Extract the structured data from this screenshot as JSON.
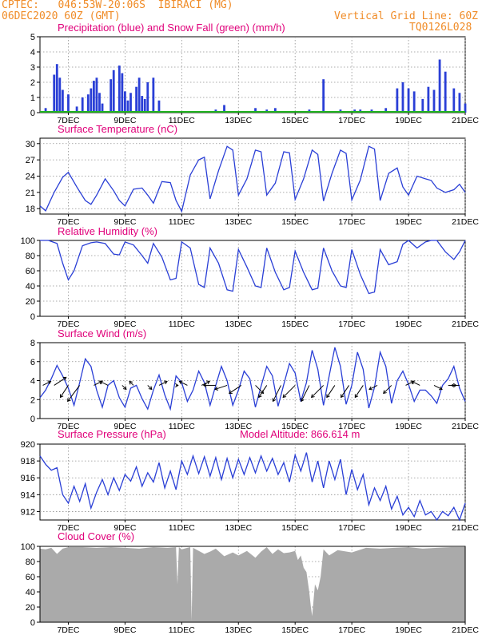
{
  "header": {
    "station_line": "CPTEC:   046:53W-20:06S  IBIRACI (MG)",
    "date_line": "06DEC2020 60Z (GMT)",
    "grid_note": "Vertical Grid Line: 60Z",
    "model_id": "TQ0126L028"
  },
  "colors": {
    "header": "#f08c28",
    "title": "#e0007a",
    "line": "#2a3fd6",
    "snow": "#21b321",
    "cloud": "#aaaaaa",
    "grid": "#909090"
  },
  "x_axis": {
    "start_day": 6,
    "end_day": 21,
    "tick_days": [
      7,
      9,
      11,
      13,
      15,
      17,
      19,
      21
    ],
    "tick_labels": [
      "7DEC",
      "9DEC",
      "11DEC",
      "13DEC",
      "15DEC",
      "17DEC",
      "19DEC",
      "21DEC"
    ]
  },
  "chart_data": [
    {
      "id": "precip",
      "type": "bar",
      "title": "Precipitation (blue) and Snow Fall (green) (mm/h)",
      "ylim": [
        0,
        5
      ],
      "yticks": [
        0,
        1,
        2,
        3,
        4,
        5
      ],
      "series": [
        {
          "name": "Precipitation",
          "color": "#2a3fd6",
          "x": [
            6.2,
            6.5,
            6.6,
            6.7,
            6.8,
            7.0,
            7.3,
            7.5,
            7.7,
            7.8,
            7.9,
            8.0,
            8.1,
            8.2,
            8.5,
            8.6,
            8.8,
            8.9,
            9.0,
            9.1,
            9.2,
            9.4,
            9.5,
            9.6,
            9.7,
            9.8,
            10.0,
            10.2,
            12.2,
            12.5,
            13.6,
            14.0,
            14.3,
            15.1,
            15.5,
            16.0,
            16.6,
            17.1,
            17.3,
            17.7,
            18.2,
            18.6,
            18.8,
            19.0,
            19.2,
            19.5,
            19.7,
            19.9,
            20.1,
            20.3,
            20.6,
            20.8,
            21.0
          ],
          "values": [
            0.3,
            2.5,
            3.2,
            2.3,
            1.5,
            1.2,
            0.4,
            1.0,
            1.2,
            1.6,
            2.1,
            2.3,
            1.3,
            0.6,
            2.2,
            2.8,
            3.1,
            2.6,
            1.4,
            0.8,
            1.3,
            1.7,
            2.3,
            1.1,
            0.9,
            2.0,
            2.3,
            0.8,
            0.2,
            0.5,
            0.3,
            0.2,
            0.3,
            0.1,
            0.2,
            2.2,
            0.2,
            0.2,
            0.2,
            0.2,
            0.3,
            1.6,
            2.0,
            1.6,
            1.4,
            0.9,
            1.7,
            1.5,
            3.5,
            2.7,
            1.6,
            1.3,
            0.6
          ]
        },
        {
          "name": "Snow Fall",
          "color": "#21b321",
          "x": [
            6,
            21
          ],
          "values": [
            0,
            0
          ]
        }
      ]
    },
    {
      "id": "temp",
      "type": "line",
      "title": "Surface Temperature (nC)",
      "ylim": [
        17,
        31
      ],
      "yticks": [
        18,
        21,
        24,
        27,
        30
      ],
      "x": [
        6.0,
        6.2,
        6.5,
        6.8,
        7.0,
        7.3,
        7.6,
        7.8,
        8.0,
        8.3,
        8.6,
        8.8,
        9.0,
        9.3,
        9.6,
        9.8,
        10.0,
        10.3,
        10.6,
        10.8,
        11.0,
        11.3,
        11.6,
        11.8,
        12.0,
        12.3,
        12.6,
        12.8,
        13.0,
        13.3,
        13.6,
        13.8,
        14.0,
        14.3,
        14.6,
        14.8,
        15.0,
        15.3,
        15.6,
        15.8,
        16.0,
        16.3,
        16.6,
        16.8,
        17.0,
        17.3,
        17.6,
        17.8,
        18.0,
        18.3,
        18.6,
        18.8,
        19.0,
        19.3,
        19.6,
        19.8,
        20.0,
        20.3,
        20.6,
        20.8,
        21.0
      ],
      "values": [
        18.5,
        17.6,
        21.0,
        23.8,
        24.7,
        22.0,
        19.5,
        18.8,
        20.5,
        23.5,
        21.3,
        19.5,
        18.5,
        21.6,
        21.8,
        20.5,
        19.0,
        23.0,
        22.8,
        19.5,
        17.5,
        24.2,
        27.0,
        27.5,
        19.8,
        25.0,
        29.5,
        28.8,
        20.5,
        23.5,
        28.8,
        28.5,
        20.5,
        22.7,
        28.5,
        28.3,
        19.7,
        23.5,
        28.8,
        28.0,
        19.4,
        24.5,
        28.8,
        28.2,
        19.6,
        23.3,
        29.5,
        29.0,
        19.5,
        24.5,
        25.5,
        22.0,
        20.5,
        24.0,
        23.5,
        23.2,
        21.8,
        21.0,
        21.5,
        22.5,
        21.0
      ]
    },
    {
      "id": "rh",
      "type": "line",
      "title": "Relative Humidity (%)",
      "ylim": [
        0,
        100
      ],
      "yticks": [
        0,
        20,
        40,
        60,
        80,
        100
      ],
      "x": [
        6.0,
        6.3,
        6.6,
        6.8,
        7.0,
        7.2,
        7.5,
        7.8,
        8.0,
        8.3,
        8.6,
        8.8,
        9.0,
        9.3,
        9.6,
        9.8,
        10.0,
        10.3,
        10.6,
        10.8,
        11.0,
        11.3,
        11.6,
        11.8,
        12.0,
        12.3,
        12.6,
        12.8,
        13.0,
        13.3,
        13.6,
        13.8,
        14.0,
        14.3,
        14.6,
        14.8,
        15.0,
        15.3,
        15.6,
        15.8,
        16.0,
        16.3,
        16.6,
        16.8,
        17.0,
        17.3,
        17.6,
        17.8,
        18.0,
        18.3,
        18.6,
        18.8,
        19.0,
        19.3,
        19.6,
        19.8,
        20.0,
        20.3,
        20.6,
        20.8,
        21.0
      ],
      "values": [
        100,
        100,
        96,
        70,
        48,
        60,
        93,
        97,
        98,
        96,
        82,
        81,
        98,
        94,
        80,
        70,
        96,
        78,
        48,
        50,
        98,
        90,
        42,
        38,
        90,
        70,
        35,
        33,
        88,
        65,
        40,
        38,
        90,
        58,
        35,
        38,
        86,
        58,
        35,
        37,
        90,
        60,
        40,
        38,
        88,
        55,
        30,
        32,
        88,
        68,
        72,
        95,
        100,
        90,
        98,
        100,
        100,
        85,
        75,
        85,
        100
      ]
    },
    {
      "id": "wind",
      "type": "line",
      "title": "Surface Wind (m/s)",
      "ylim": [
        0,
        8
      ],
      "yticks": [
        0,
        2,
        4,
        6,
        8
      ],
      "x": [
        6.0,
        6.2,
        6.4,
        6.6,
        6.8,
        7.0,
        7.2,
        7.4,
        7.6,
        7.8,
        8.0,
        8.2,
        8.4,
        8.6,
        8.8,
        9.0,
        9.2,
        9.4,
        9.6,
        9.8,
        10.0,
        10.2,
        10.4,
        10.6,
        10.8,
        11.0,
        11.2,
        11.4,
        11.6,
        11.8,
        12.0,
        12.2,
        12.4,
        12.6,
        12.8,
        13.0,
        13.2,
        13.4,
        13.6,
        13.8,
        14.0,
        14.2,
        14.4,
        14.6,
        14.8,
        15.0,
        15.2,
        15.4,
        15.6,
        15.8,
        16.0,
        16.2,
        16.4,
        16.6,
        16.8,
        17.0,
        17.2,
        17.4,
        17.6,
        17.8,
        18.0,
        18.2,
        18.4,
        18.6,
        18.8,
        19.0,
        19.2,
        19.4,
        19.6,
        19.8,
        20.0,
        20.2,
        20.4,
        20.6,
        20.8,
        21.0
      ],
      "values": [
        2.2,
        3.0,
        4.2,
        5.6,
        4.5,
        3.2,
        1.4,
        3.8,
        6.3,
        5.5,
        3.0,
        1.2,
        3.5,
        4.0,
        2.2,
        1.2,
        3.2,
        3.5,
        2.1,
        1.0,
        3.0,
        4.6,
        2.5,
        1.0,
        4.5,
        3.8,
        1.8,
        3.0,
        5.0,
        3.8,
        1.4,
        3.5,
        5.5,
        4.0,
        1.4,
        3.0,
        5.0,
        4.2,
        1.2,
        3.4,
        5.5,
        4.5,
        1.3,
        3.6,
        5.8,
        4.8,
        1.8,
        3.8,
        7.2,
        5.2,
        1.4,
        4.5,
        7.5,
        5.5,
        1.5,
        3.5,
        7.0,
        5.2,
        1.1,
        3.3,
        7.0,
        5.5,
        1.6,
        4.0,
        5.0,
        3.6,
        1.8,
        3.0,
        3.0,
        2.4,
        1.6,
        3.5,
        4.2,
        5.5,
        3.2,
        1.8
      ],
      "arrows_x": [
        6.1,
        6.5,
        7.0,
        7.4,
        7.9,
        8.4,
        8.9,
        9.3,
        9.8,
        10.2,
        10.8,
        11.2,
        11.7,
        12.2,
        12.6,
        13.1,
        13.6,
        14.0,
        14.5,
        15.0,
        15.5,
        16.0,
        16.4,
        16.9,
        17.4,
        17.9,
        18.4,
        18.9,
        19.4,
        19.9,
        20.4,
        20.8
      ],
      "arrows_u": [
        2,
        3,
        -2,
        -3,
        2,
        -2,
        1,
        -1,
        1,
        2,
        0.5,
        -2,
        2,
        -3,
        -3,
        -3,
        2,
        -2,
        -2,
        -3,
        -2,
        -3,
        -2,
        -2,
        -2,
        -2,
        -2,
        2,
        -2,
        2,
        2,
        -2
      ],
      "arrows_v": [
        1,
        2,
        -3,
        -4,
        1,
        1,
        -1,
        1,
        -1,
        1,
        0,
        1,
        1,
        0,
        -1,
        -2,
        -2,
        -3,
        -4,
        -3,
        -4,
        -3,
        -3,
        -3,
        -3,
        -1,
        -2,
        1,
        1,
        -1,
        0,
        0
      ]
    },
    {
      "id": "pressure",
      "type": "line",
      "title": "Surface Pressure (hPa)",
      "annotation": "Model Altitude: 866.614 m",
      "ylim": [
        911,
        920
      ],
      "yticks": [
        912,
        914,
        916,
        918,
        920
      ],
      "x": [
        6.0,
        6.2,
        6.4,
        6.6,
        6.8,
        7.0,
        7.2,
        7.4,
        7.6,
        7.8,
        8.0,
        8.2,
        8.4,
        8.6,
        8.8,
        9.0,
        9.2,
        9.4,
        9.6,
        9.8,
        10.0,
        10.2,
        10.4,
        10.6,
        10.8,
        11.0,
        11.2,
        11.4,
        11.6,
        11.8,
        12.0,
        12.2,
        12.4,
        12.6,
        12.8,
        13.0,
        13.2,
        13.4,
        13.6,
        13.8,
        14.0,
        14.2,
        14.4,
        14.6,
        14.8,
        15.0,
        15.2,
        15.4,
        15.6,
        15.8,
        16.0,
        16.2,
        16.4,
        16.6,
        16.8,
        17.0,
        17.2,
        17.4,
        17.6,
        17.8,
        18.0,
        18.2,
        18.4,
        18.6,
        18.8,
        19.0,
        19.2,
        19.4,
        19.6,
        19.8,
        20.0,
        20.2,
        20.4,
        20.6,
        20.8,
        21.0
      ],
      "values": [
        918.6,
        917.6,
        916.9,
        917.2,
        914.0,
        913.0,
        915.0,
        913.2,
        915.3,
        912.4,
        914.3,
        915.8,
        914.0,
        916.0,
        914.5,
        916.4,
        915.6,
        917.3,
        915.0,
        916.6,
        915.5,
        917.8,
        914.8,
        916.8,
        914.6,
        918.0,
        916.4,
        918.6,
        916.5,
        918.5,
        916.2,
        918.4,
        915.8,
        918.3,
        916.0,
        918.2,
        916.4,
        918.4,
        916.6,
        918.6,
        916.8,
        918.3,
        916.4,
        917.8,
        915.5,
        918.7,
        916.8,
        919.0,
        915.5,
        918.0,
        914.8,
        918.0,
        915.8,
        918.2,
        914.0,
        917.0,
        914.6,
        916.4,
        912.8,
        914.8,
        913.3,
        915.0,
        912.3,
        913.8,
        911.6,
        912.5,
        911.4,
        913.3,
        911.6,
        912.0,
        911.0,
        912.0,
        911.5,
        912.5,
        911.0,
        913.0
      ]
    },
    {
      "id": "cloud",
      "type": "area",
      "title": "Cloud Cover (%)",
      "ylim": [
        0,
        100
      ],
      "yticks": [
        0,
        20,
        40,
        60,
        80,
        100
      ],
      "x": [
        6.0,
        6.2,
        6.4,
        6.6,
        6.8,
        7.0,
        7.5,
        8.0,
        8.5,
        9.0,
        9.5,
        10.0,
        10.5,
        10.8,
        10.85,
        10.9,
        11.0,
        11.2,
        11.3,
        11.35,
        11.4,
        11.5,
        11.8,
        12.0,
        12.2,
        12.5,
        12.8,
        13.0,
        13.3,
        13.6,
        13.8,
        14.0,
        14.2,
        14.4,
        14.6,
        14.8,
        15.0,
        15.1,
        15.2,
        15.3,
        15.4,
        15.5,
        15.55,
        15.6,
        15.7,
        15.8,
        15.9,
        16.0,
        16.2,
        16.5,
        17.0,
        17.5,
        18.0,
        18.5,
        19.0,
        19.5,
        20.0,
        20.5,
        21.0
      ],
      "values": [
        97,
        96,
        98,
        90,
        97,
        99,
        99,
        98,
        99,
        98,
        97,
        99,
        98,
        99,
        50,
        99,
        96,
        98,
        99,
        2,
        98,
        96,
        90,
        93,
        97,
        87,
        92,
        88,
        94,
        85,
        93,
        99,
        90,
        96,
        91,
        92,
        94,
        82,
        88,
        72,
        66,
        40,
        22,
        8,
        50,
        42,
        60,
        96,
        88,
        95,
        92,
        98,
        97,
        98,
        99,
        97,
        98,
        99,
        99
      ]
    }
  ]
}
